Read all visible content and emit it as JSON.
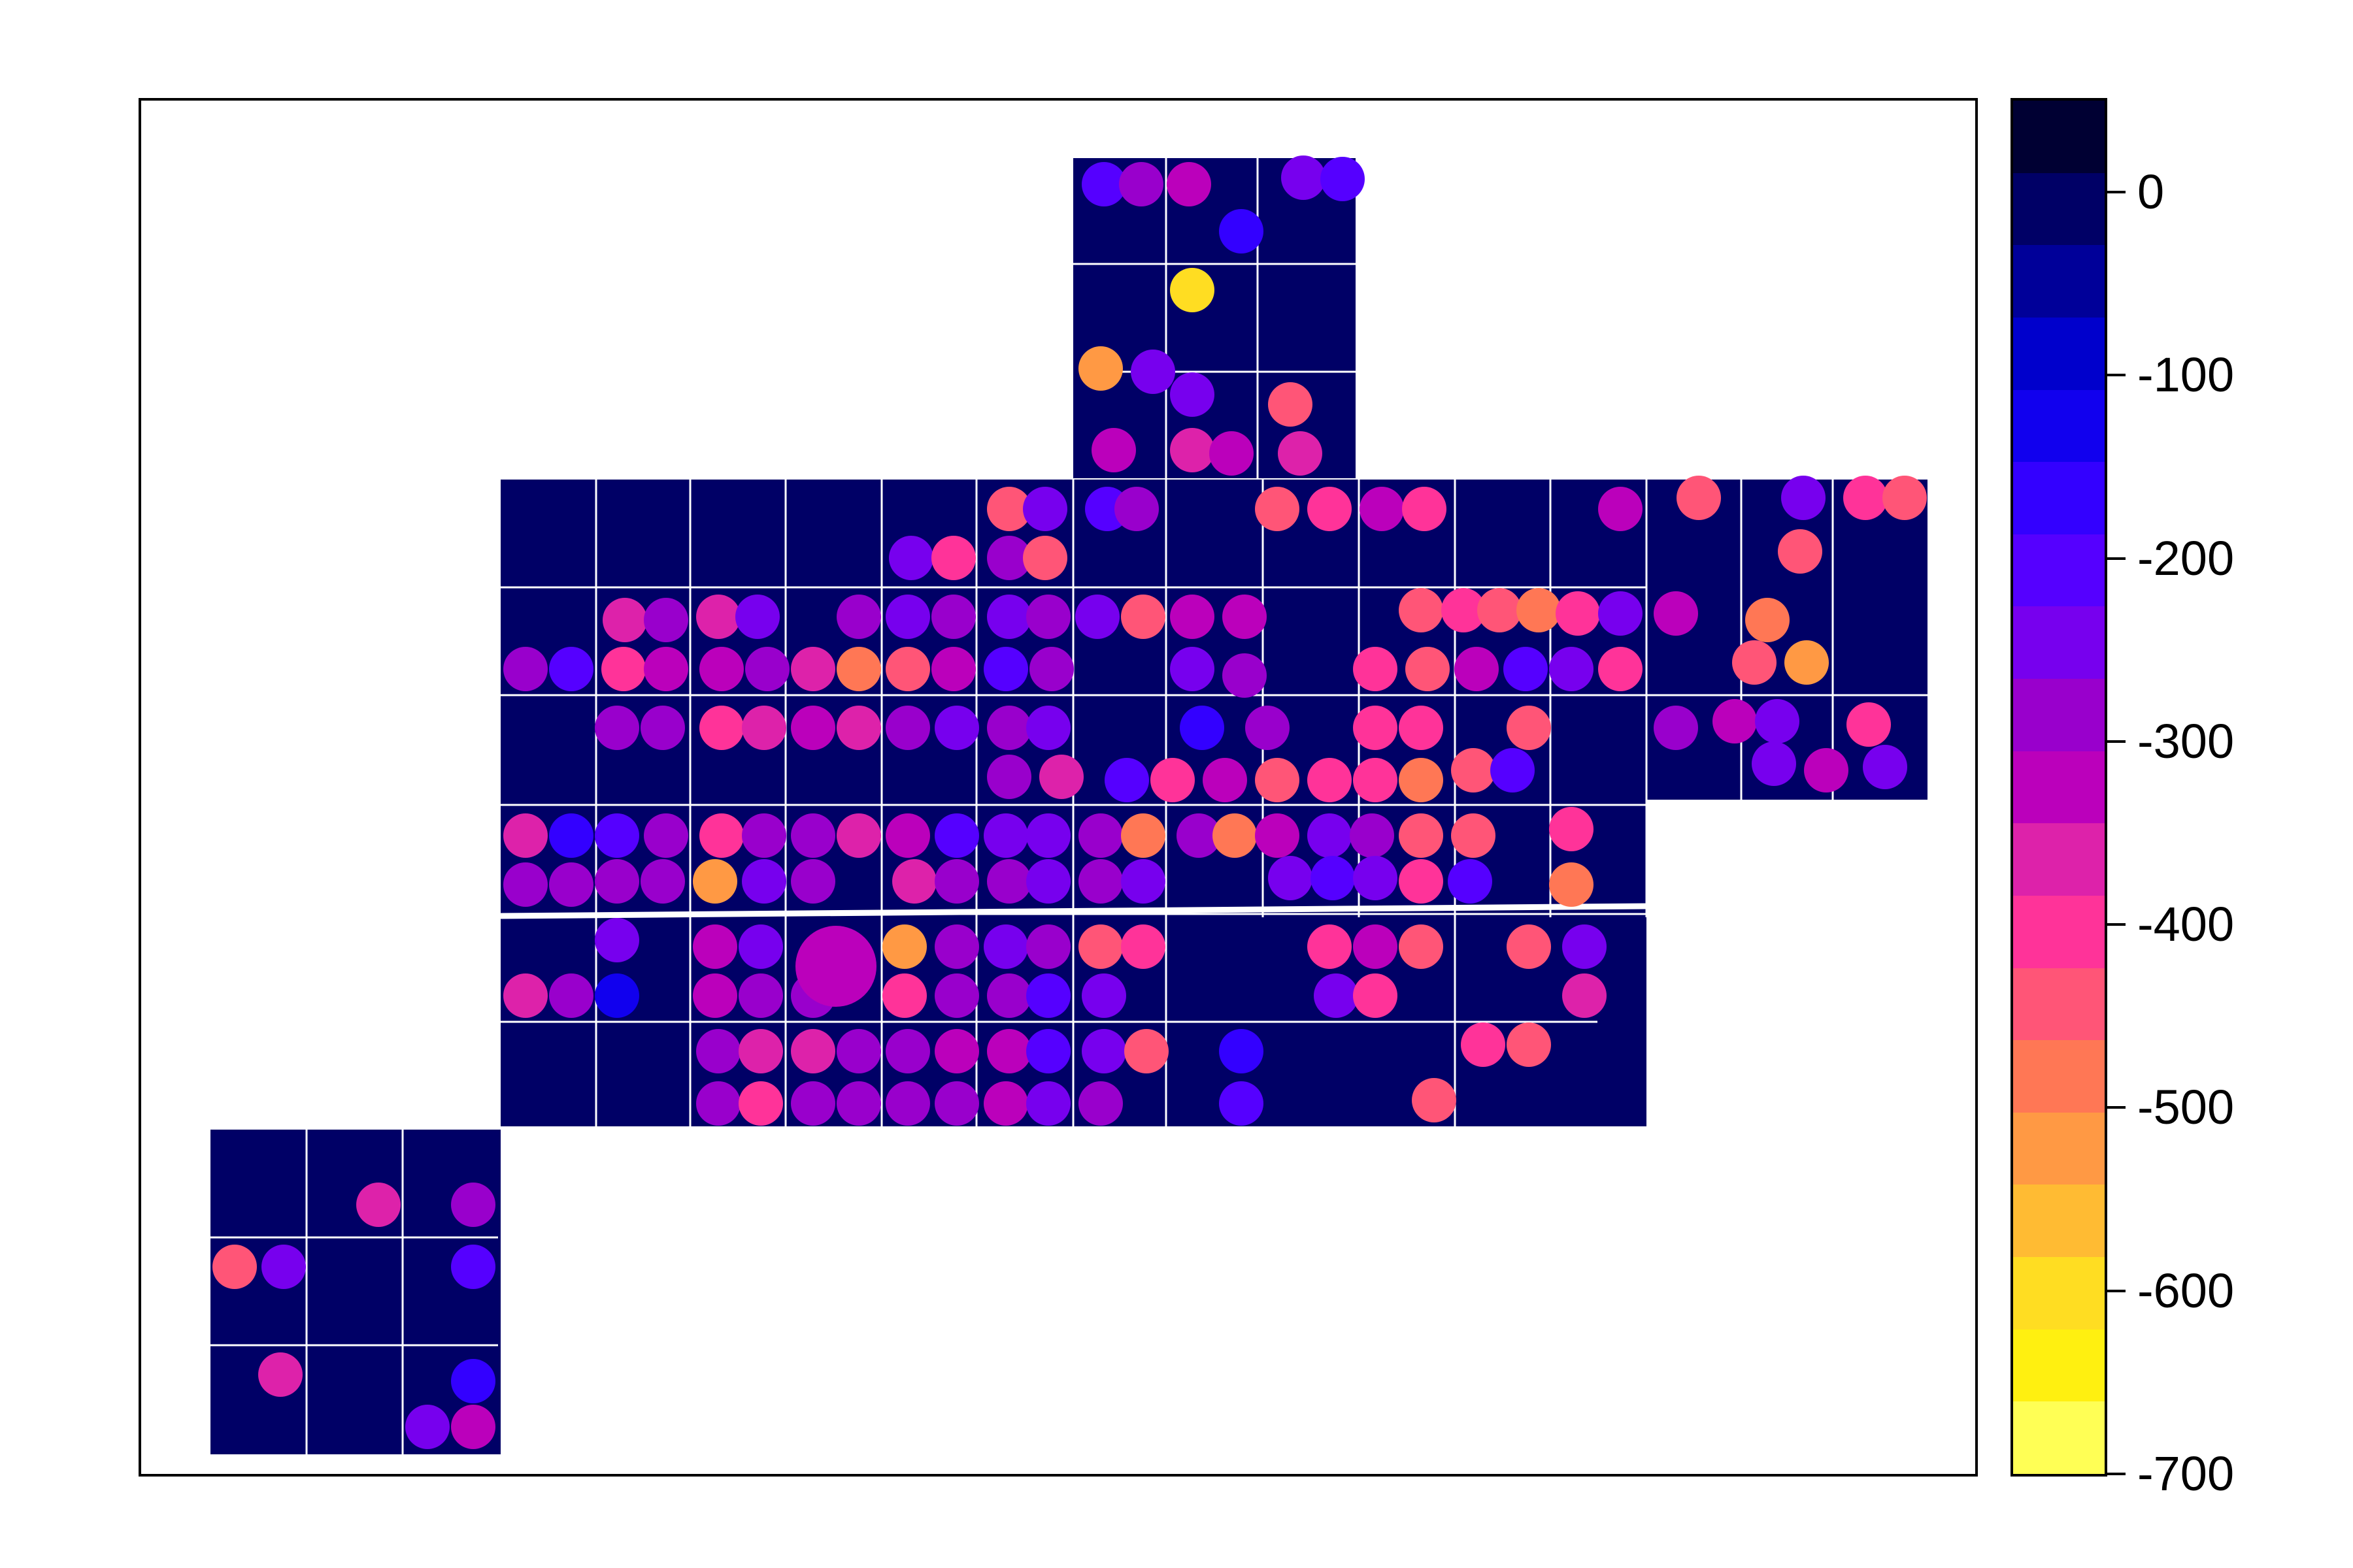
{
  "legend": {
    "colors": [
      "#000033",
      "#000066",
      "#000099",
      "#0000CC",
      "#1100EE",
      "#3300FF",
      "#5500FF",
      "#7700EE",
      "#9900CC",
      "#BB00BB",
      "#DD22AA",
      "#FF3399",
      "#FF5577",
      "#FF7755",
      "#FF9944",
      "#FFBB33",
      "#FFDD22",
      "#FFF010",
      "#FFFF55"
    ],
    "ticks": [
      {
        "label": "0",
        "value": 0
      },
      {
        "label": "-100",
        "value": -100
      },
      {
        "label": "-200",
        "value": -200
      },
      {
        "label": "-300",
        "value": -300
      },
      {
        "label": "-400",
        "value": -400
      },
      {
        "label": "-500",
        "value": -500
      },
      {
        "label": "-600",
        "value": -600
      },
      {
        "label": "-700",
        "value": -700
      }
    ],
    "range": [
      -700,
      50
    ]
  },
  "map": {
    "background_color": "#000066",
    "grid_color": "#ffffff"
  }
}
